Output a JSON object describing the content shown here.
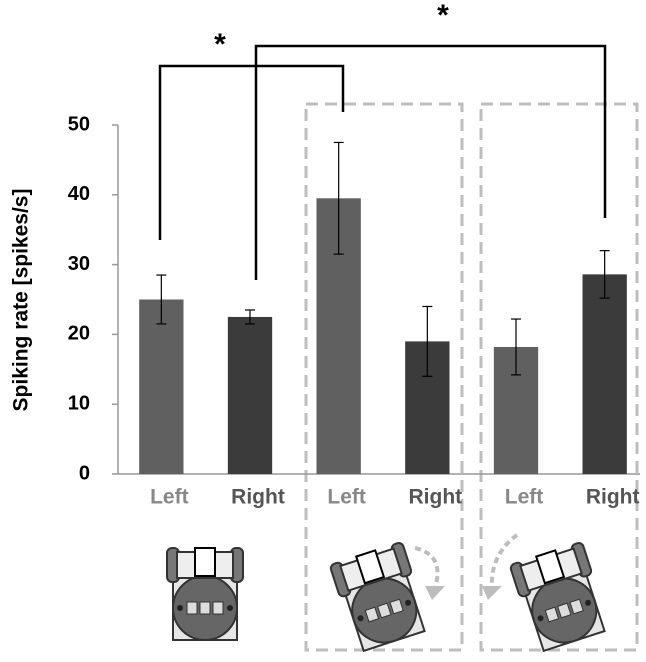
{
  "chart_data": {
    "type": "bar",
    "y_label": "Spiking rate [spikes/s]",
    "categories": [
      "Left",
      "Right",
      "Left",
      "Right",
      "Left",
      "Right"
    ],
    "values": [
      25,
      22.5,
      39.5,
      19,
      18.2,
      28.6
    ],
    "errors": [
      3.5,
      1,
      8,
      5,
      4,
      3.4
    ],
    "colors": [
      "#606060",
      "#3b3b3b",
      "#606060",
      "#3b3b3b",
      "#606060",
      "#3b3b3b"
    ],
    "ylim": [
      0,
      50
    ],
    "yticks": [
      0,
      10,
      20,
      30,
      40,
      50
    ],
    "annotations": [
      "*",
      "*"
    ]
  }
}
